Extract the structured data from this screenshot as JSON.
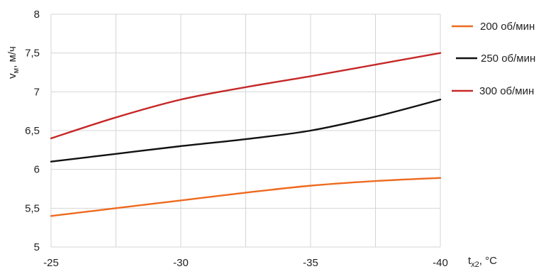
{
  "chart_data": {
    "type": "line",
    "x": [
      -25,
      -30,
      -35,
      -40
    ],
    "x_ticks": [
      "-25",
      "-30",
      "-35",
      "-40"
    ],
    "y_ticks": [
      "5",
      "5,5",
      "6",
      "6,5",
      "7",
      "7,5",
      "8"
    ],
    "ylim": [
      5,
      8
    ],
    "xlim": [
      -25,
      -40
    ],
    "grid": true,
    "legend_position": "right",
    "ylabel": {
      "main": "v",
      "sub": "м",
      "rest": ", м/ч"
    },
    "xlabel": {
      "main": "t",
      "sub": "x2",
      "rest": ", °С"
    },
    "series": [
      {
        "name": "200 об/мин",
        "color": "#ee6a1f",
        "points": [
          [
            -25,
            5.4
          ],
          [
            -27.5,
            5.5
          ],
          [
            -30,
            5.6
          ],
          [
            -32.5,
            5.7
          ],
          [
            -35,
            5.79
          ],
          [
            -37.5,
            5.85
          ],
          [
            -40,
            5.89
          ]
        ]
      },
      {
        "name": "250 об/мин",
        "color": "#111111",
        "points": [
          [
            -25,
            6.1
          ],
          [
            -27.5,
            6.2
          ],
          [
            -30,
            6.3
          ],
          [
            -32.5,
            6.39
          ],
          [
            -35,
            6.5
          ],
          [
            -37.5,
            6.68
          ],
          [
            -40,
            6.9
          ]
        ]
      },
      {
        "name": "300 об/мин",
        "color": "#c62828",
        "points": [
          [
            -25,
            6.4
          ],
          [
            -27.5,
            6.67
          ],
          [
            -30,
            6.9
          ],
          [
            -32.5,
            7.06
          ],
          [
            -35,
            7.2
          ],
          [
            -37.5,
            7.35
          ],
          [
            -40,
            7.5
          ]
        ]
      }
    ]
  }
}
